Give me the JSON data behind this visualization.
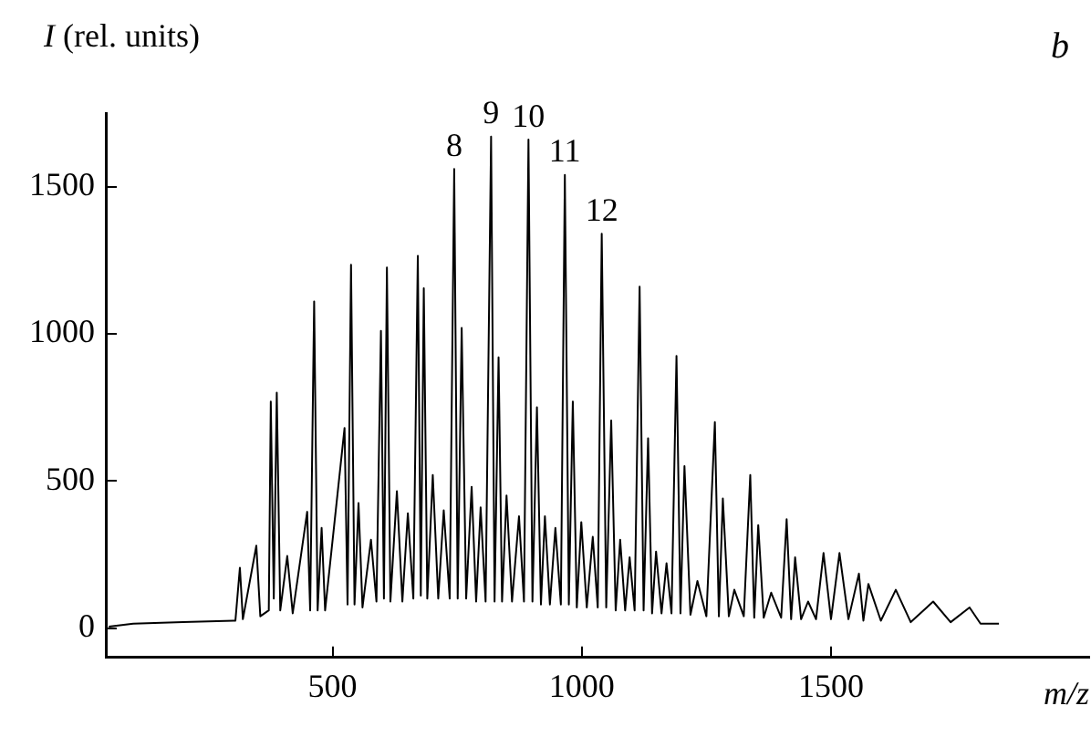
{
  "chart_data": {
    "type": "line",
    "xlabel": "m/z",
    "ylabel": "I (rel. units)",
    "x": [
      51,
      100,
      200,
      305,
      314,
      320,
      347,
      355,
      372,
      376,
      382,
      388,
      395,
      409,
      420,
      449,
      455,
      463,
      470,
      478,
      485,
      524,
      530,
      537,
      544,
      552,
      560,
      577,
      588,
      597,
      603,
      609,
      616,
      629,
      640,
      651,
      662,
      671,
      677,
      683,
      690,
      701,
      712,
      723,
      735,
      744,
      751,
      759,
      768,
      779,
      788,
      797,
      807,
      818,
      825,
      833,
      840,
      849,
      860,
      874,
      884,
      893,
      901,
      910,
      918,
      926,
      936,
      947,
      958,
      966,
      974,
      982,
      990,
      999,
      1010,
      1022,
      1032,
      1040,
      1049,
      1059,
      1068,
      1077,
      1087,
      1096,
      1106,
      1116,
      1124,
      1133,
      1141,
      1149,
      1160,
      1170,
      1180,
      1190,
      1198,
      1206,
      1218,
      1232,
      1250,
      1267,
      1275,
      1283,
      1295,
      1306,
      1325,
      1338,
      1346,
      1354,
      1365,
      1380,
      1400,
      1411,
      1420,
      1428,
      1440,
      1454,
      1470,
      1485,
      1500,
      1517,
      1535,
      1556,
      1565,
      1575,
      1600,
      1630,
      1660,
      1705,
      1740,
      1778,
      1800,
      1837
    ],
    "values": [
      5,
      15,
      20,
      25,
      205,
      30,
      280,
      40,
      60,
      770,
      100,
      800,
      60,
      245,
      50,
      395,
      60,
      1110,
      60,
      340,
      60,
      680,
      80,
      1235,
      80,
      425,
      70,
      300,
      90,
      1010,
      100,
      1225,
      90,
      465,
      90,
      390,
      100,
      1265,
      110,
      1155,
      100,
      520,
      100,
      400,
      100,
      1560,
      100,
      1020,
      100,
      480,
      90,
      410,
      90,
      1670,
      90,
      920,
      90,
      450,
      90,
      380,
      90,
      1660,
      90,
      750,
      80,
      380,
      80,
      340,
      80,
      1540,
      80,
      770,
      70,
      360,
      70,
      310,
      70,
      1340,
      70,
      705,
      60,
      300,
      60,
      240,
      60,
      1160,
      60,
      645,
      50,
      260,
      50,
      220,
      50,
      925,
      50,
      550,
      45,
      160,
      40,
      700,
      40,
      440,
      40,
      130,
      40,
      520,
      35,
      350,
      35,
      120,
      35,
      370,
      30,
      240,
      30,
      90,
      30,
      255,
      30,
      255,
      30,
      185,
      25,
      150,
      25,
      130,
      20,
      90,
      20,
      70,
      15,
      15
    ],
    "color": "#000000",
    "marker": "none",
    "grid": false,
    "legend": false,
    "xlim": [
      45,
      2018
    ],
    "ylim": [
      -100,
      1750
    ],
    "xticks": [
      500,
      1000,
      1500
    ],
    "yticks": [
      0,
      500,
      1000,
      1500
    ],
    "annotations": [
      {
        "text": "8",
        "x": 744,
        "y": 1560
      },
      {
        "text": "9",
        "x": 818,
        "y": 1670
      },
      {
        "text": "10",
        "x": 893,
        "y": 1660
      },
      {
        "text": "11",
        "x": 966,
        "y": 1540
      },
      {
        "text": "12",
        "x": 1040,
        "y": 1340
      },
      "b"
    ]
  }
}
